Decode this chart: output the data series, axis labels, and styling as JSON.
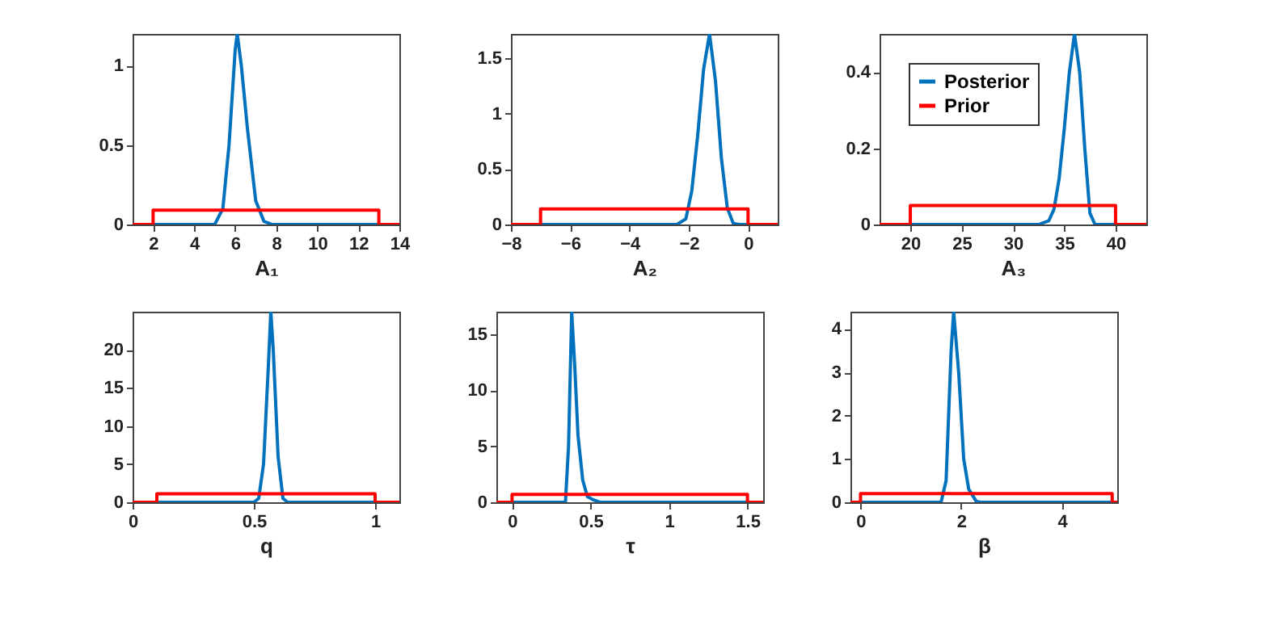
{
  "chart_data": [
    {
      "type": "line",
      "xlabel": "A₁",
      "xlim": [
        1,
        14
      ],
      "ylim": [
        0,
        1.2
      ],
      "xticks": [
        2,
        4,
        6,
        8,
        10,
        12,
        14
      ],
      "yticks": [
        0,
        0.5,
        1
      ],
      "grid": false,
      "legend": false,
      "series": [
        {
          "color": "#0072bd",
          "x": [
            1,
            5.0,
            5.4,
            5.7,
            6.0,
            6.1,
            6.3,
            6.6,
            7.0,
            7.4,
            7.8,
            14
          ],
          "values": [
            0,
            0,
            0.1,
            0.5,
            1.1,
            1.2,
            1.0,
            0.6,
            0.15,
            0.02,
            0,
            0
          ]
        },
        {
          "color": "#ff0000",
          "x": [
            1,
            2,
            2,
            13,
            13,
            14
          ],
          "values": [
            0,
            0,
            0.09,
            0.09,
            0,
            0
          ]
        }
      ]
    },
    {
      "type": "line",
      "xlabel": "A₂",
      "xlim": [
        -8,
        1
      ],
      "ylim": [
        0,
        1.72
      ],
      "xticks": [
        -8,
        -6,
        -4,
        -2,
        0
      ],
      "yticks": [
        0,
        0.5,
        1,
        1.5
      ],
      "grid": false,
      "legend": false,
      "series": [
        {
          "color": "#0072bd",
          "x": [
            -8,
            -2.4,
            -2.1,
            -1.9,
            -1.7,
            -1.5,
            -1.3,
            -1.1,
            -0.9,
            -0.7,
            -0.5,
            -0.3,
            1
          ],
          "values": [
            0,
            0,
            0.05,
            0.3,
            0.8,
            1.4,
            1.72,
            1.3,
            0.6,
            0.15,
            0.01,
            0,
            0
          ]
        },
        {
          "color": "#ff0000",
          "x": [
            -8,
            -7,
            -7,
            0,
            0,
            1
          ],
          "values": [
            0,
            0,
            0.14,
            0.14,
            0,
            0
          ]
        }
      ]
    },
    {
      "type": "line",
      "xlabel": "A₃",
      "xlim": [
        17,
        43
      ],
      "ylim": [
        0,
        0.5
      ],
      "xticks": [
        20,
        25,
        30,
        35,
        40
      ],
      "yticks": [
        0,
        0.2,
        0.4
      ],
      "grid": false,
      "legend": "top left",
      "series": [
        {
          "name": "Posterior",
          "color": "#0072bd",
          "x": [
            17,
            32.5,
            33.5,
            34,
            34.5,
            35,
            35.5,
            36,
            36.5,
            37,
            37.5,
            38,
            43
          ],
          "values": [
            0,
            0,
            0.01,
            0.04,
            0.12,
            0.25,
            0.4,
            0.5,
            0.4,
            0.2,
            0.03,
            0,
            0
          ]
        },
        {
          "name": "Prior",
          "color": "#ff0000",
          "x": [
            17,
            20,
            20,
            40,
            40,
            43
          ],
          "values": [
            0,
            0,
            0.05,
            0.05,
            0,
            0
          ]
        }
      ]
    },
    {
      "type": "line",
      "xlabel": "q",
      "xlim": [
        0,
        1.1
      ],
      "ylim": [
        0,
        25
      ],
      "xticks": [
        0,
        0.5,
        1
      ],
      "yticks": [
        0,
        5,
        10,
        15,
        20
      ],
      "grid": false,
      "legend": false,
      "series": [
        {
          "color": "#0072bd",
          "x": [
            0,
            0.5,
            0.52,
            0.54,
            0.56,
            0.57,
            0.58,
            0.6,
            0.62,
            0.64,
            1.1
          ],
          "values": [
            0,
            0,
            0.5,
            5,
            18,
            25,
            20,
            6,
            0.5,
            0,
            0
          ]
        },
        {
          "color": "#ff0000",
          "x": [
            0,
            0.1,
            0.1,
            1,
            1,
            1.1
          ],
          "values": [
            0,
            0,
            1.1,
            1.1,
            0,
            0
          ]
        }
      ]
    },
    {
      "type": "line",
      "xlabel": "τ",
      "xlim": [
        -0.1,
        1.6
      ],
      "ylim": [
        0,
        17
      ],
      "xticks": [
        0,
        0.5,
        1,
        1.5
      ],
      "yticks": [
        0,
        5,
        10,
        15
      ],
      "grid": false,
      "legend": false,
      "series": [
        {
          "color": "#0072bd",
          "x": [
            -0.1,
            0.34,
            0.36,
            0.38,
            0.4,
            0.42,
            0.45,
            0.48,
            0.52,
            0.56,
            1.6
          ],
          "values": [
            0,
            0,
            5,
            17,
            12,
            6,
            2,
            0.5,
            0.2,
            0,
            0
          ]
        },
        {
          "color": "#ff0000",
          "x": [
            -0.1,
            0,
            0,
            1.5,
            1.5,
            1.6
          ],
          "values": [
            0,
            0,
            0.7,
            0.7,
            0,
            0
          ]
        }
      ]
    },
    {
      "type": "line",
      "xlabel": "β",
      "xlim": [
        -0.2,
        5.1
      ],
      "ylim": [
        0,
        4.4
      ],
      "xticks": [
        0,
        2,
        4
      ],
      "yticks": [
        0,
        1,
        2,
        3,
        4
      ],
      "grid": false,
      "legend": false,
      "series": [
        {
          "color": "#0072bd",
          "x": [
            -0.2,
            1.6,
            1.7,
            1.8,
            1.85,
            1.95,
            2.05,
            2.15,
            2.3,
            2.4,
            5.1
          ],
          "values": [
            0,
            0,
            0.5,
            3.5,
            4.4,
            3.0,
            1.0,
            0.3,
            0.02,
            0,
            0
          ]
        },
        {
          "color": "#ff0000",
          "x": [
            -0.2,
            0,
            0,
            5,
            5,
            5.1
          ],
          "values": [
            0,
            0,
            0.2,
            0.2,
            0,
            0
          ]
        }
      ]
    }
  ]
}
